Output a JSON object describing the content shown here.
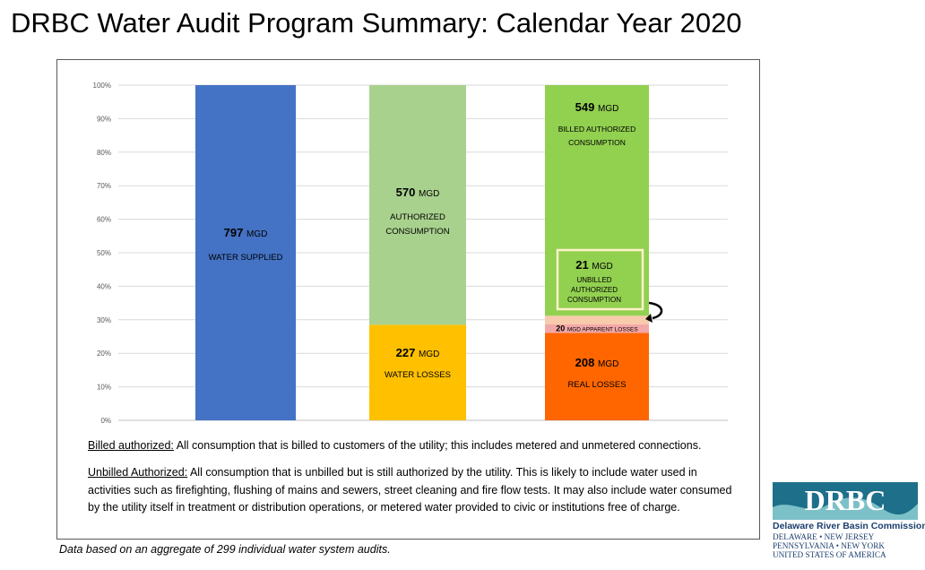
{
  "title": "DRBC Water Audit Program Summary: Calendar Year 2020",
  "chart_data": {
    "type": "bar",
    "stacked": true,
    "y_axis": {
      "min": 0,
      "max": 100,
      "unit": "%",
      "ticks": [
        "0%",
        "10%",
        "20%",
        "30%",
        "40%",
        "50%",
        "60%",
        "70%",
        "80%",
        "90%",
        "100%"
      ]
    },
    "grid": true,
    "columns": [
      {
        "segments": [
          {
            "key": "water_supplied",
            "value_mgd": 797,
            "share": 100,
            "number": "797",
            "unit": "MGD",
            "label": "WATER SUPPLIED",
            "color": "#4472c4"
          }
        ]
      },
      {
        "segments": [
          {
            "key": "water_losses",
            "value_mgd": 227,
            "share": 28.5,
            "number": "227",
            "unit": "MGD",
            "label": "WATER LOSSES",
            "color": "#ffc000"
          },
          {
            "key": "authorized_consumption",
            "value_mgd": 570,
            "share": 71.5,
            "number": "570",
            "unit": "MGD",
            "label_lines": [
              "AUTHORIZED",
              "CONSUMPTION"
            ],
            "color": "#a9d18e"
          }
        ]
      },
      {
        "segments": [
          {
            "key": "real_losses",
            "value_mgd": 208,
            "share": 26.1,
            "number": "208",
            "unit": "MGD",
            "label": "REAL LOSSES",
            "color": "#ff6600"
          },
          {
            "key": "apparent_losses",
            "value_mgd": 20,
            "share": 2.5,
            "number": "20",
            "unit": "MGD APPARENT LOSSES",
            "color": "#f4a7a7"
          },
          {
            "key": "unbilled_authorized",
            "value_mgd": 21,
            "share": 2.6,
            "number": "21",
            "unit": "MGD",
            "label_lines": [
              "UNBILLED",
              "AUTHORIZED",
              "CONSUMPTION"
            ],
            "color": "#f8cbad"
          },
          {
            "key": "billed_authorized",
            "value_mgd": 549,
            "share": 68.8,
            "number": "549",
            "unit": "MGD",
            "label_lines": [
              "BILLED AUTHORIZED",
              "CONSUMPTION"
            ],
            "color": "#92d050"
          }
        ]
      }
    ]
  },
  "definitions": [
    {
      "term": "Billed authorized:",
      "text": " All consumption that is billed to customers of the utility; this includes metered and unmetered connections."
    },
    {
      "term": "Unbilled Authorized:",
      "text": " All consumption that is unbilled but is still authorized by the utility.  This is likely to include water used in activities such as firefighting, flushing of mains and sewers, street cleaning and fire flow tests.  It may also include water consumed by the utility itself in treatment or distribution operations, or metered water provided to civic or institutions free of charge."
    }
  ],
  "footnote": "Data based on an aggregate of 299 individual water system audits.",
  "logo": {
    "mark": "DRBC",
    "name": "Delaware River Basin Commission",
    "states_line1": "DELAWARE  •  NEW JERSEY",
    "states_line2": "PENNSYLVANIA • NEW YORK",
    "states_line3": "UNITED STATES OF AMERICA"
  }
}
